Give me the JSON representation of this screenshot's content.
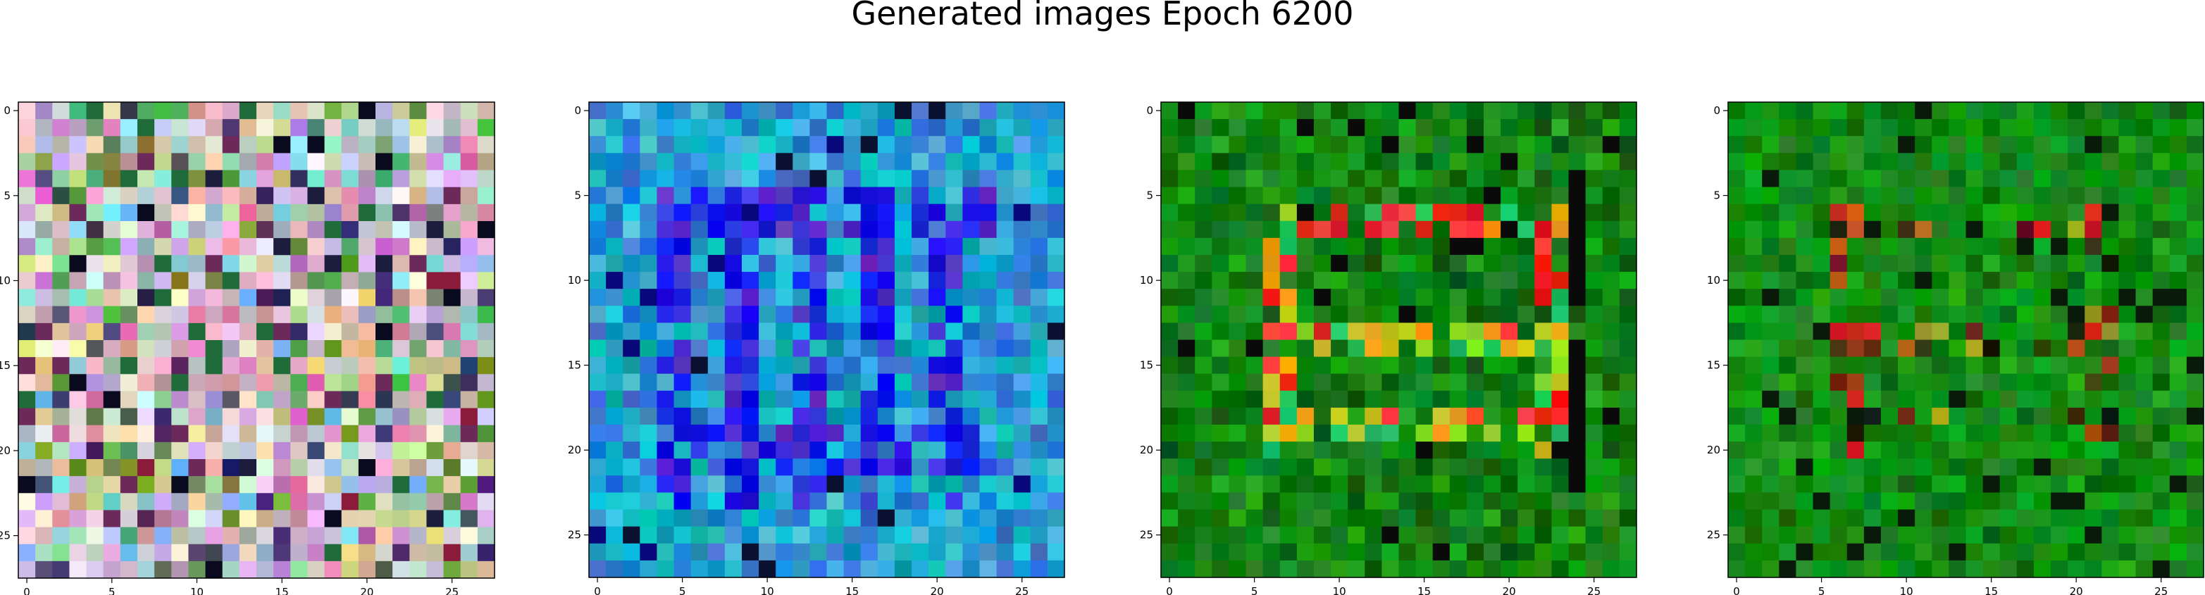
{
  "figure": {
    "title": "Generated images Epoch 6200"
  },
  "chart_data": [
    {
      "type": "heatmap",
      "title": "",
      "xlabel": "",
      "ylabel": "",
      "grid": "28x28",
      "xlim": [
        -0.5,
        27.5
      ],
      "ylim": [
        27.5,
        -0.5
      ],
      "xticks": [
        "0",
        "5",
        "10",
        "15",
        "20",
        "25"
      ],
      "yticks": [
        "0",
        "5",
        "10",
        "15",
        "20",
        "25"
      ],
      "palette": [
        "#d8b9c3",
        "#9cc6a8",
        "#e8c6da",
        "#c2c6b0",
        "#b99ac8",
        "#d8d08e",
        "#efe3ef",
        "#a7d2c8",
        "#cf7bb6",
        "#6d8f3a",
        "#5da35e",
        "#f0e0c8",
        "#3b3b66",
        "#d6a8a0",
        "#7fd0e6",
        "#d8c0e8"
      ],
      "accent_colors": [
        "#1c1c3c",
        "#6b2a5a",
        "#1f6b3a",
        "#0a0a1e",
        "#8a1b3b"
      ],
      "pattern": "multicolor pastel noise with scattered dark pixels"
    },
    {
      "type": "heatmap",
      "title": "",
      "xlabel": "",
      "ylabel": "",
      "grid": "28x28",
      "xlim": [
        -0.5,
        27.5
      ],
      "ylim": [
        27.5,
        -0.5
      ],
      "xticks": [
        "0",
        "5",
        "10",
        "15",
        "20",
        "25"
      ],
      "yticks": [
        "0",
        "5",
        "10",
        "15",
        "20",
        "25"
      ],
      "palette": [
        "#1b8bd0",
        "#2aa7d6",
        "#12b6c8",
        "#3a7fd8",
        "#0fa0b0",
        "#4ab8e0",
        "#2c6fc8",
        "#1ac0d0"
      ],
      "accent_colors": [
        "#0a0ae8",
        "#1a1ad0",
        "#2020f0",
        "#3a3ae0",
        "#5a30c8",
        "#08087a",
        "#0a1030"
      ],
      "pattern": "cyan-blue background with central saturated blue structure"
    },
    {
      "type": "heatmap",
      "title": "",
      "xlabel": "",
      "ylabel": "",
      "grid": "28x28",
      "xlim": [
        -0.5,
        27.5
      ],
      "ylim": [
        27.5,
        -0.5
      ],
      "xticks": [
        "0",
        "5",
        "10",
        "15",
        "20",
        "25"
      ],
      "yticks": [
        "0",
        "5",
        "10",
        "15",
        "20",
        "25"
      ],
      "palette": [
        "#0a7a0a",
        "#0f8f0f",
        "#178a17",
        "#0a6a0a",
        "#1aa01a",
        "#0f7f20",
        "#228b22",
        "#0b5f0b"
      ],
      "accent_colors": [
        "#e81818",
        "#f2a010",
        "#c8c020",
        "#ff3a3a",
        "#90e020",
        "#20c060",
        "#f0f0a0",
        "#0a0a0a"
      ],
      "pattern": "green background with red-orange rectangular frame in middle"
    },
    {
      "type": "heatmap",
      "title": "",
      "xlabel": "",
      "ylabel": "",
      "grid": "28x28",
      "xlim": [
        -0.5,
        27.5
      ],
      "ylim": [
        27.5,
        -0.5
      ],
      "xticks": [
        "0",
        "5",
        "10",
        "15",
        "20",
        "25"
      ],
      "yticks": [
        "0",
        "5",
        "10",
        "15",
        "20",
        "25"
      ],
      "palette": [
        "#0a8a0a",
        "#0f9f0f",
        "#178a17",
        "#0a7a0a",
        "#1aa01a",
        "#0f8f20",
        "#228b22",
        "#0b6f0b"
      ],
      "accent_colors": [
        "#6a1a1a",
        "#a03a1a",
        "#c86020",
        "#d02020",
        "#3a3a0a",
        "#0a1a0a",
        "#a0a020"
      ],
      "pattern": "green background with faint dark-red rectangular frame"
    }
  ]
}
